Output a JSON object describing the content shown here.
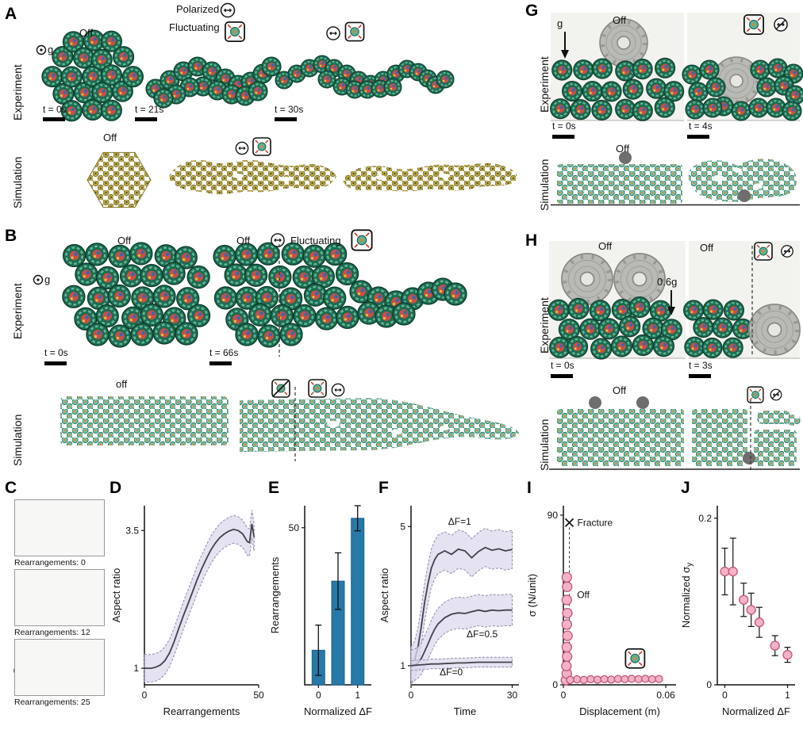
{
  "colors": {
    "bar": "#2779a7",
    "bar_edge": "#1d618c",
    "point_fill": "#f3b3c4",
    "point_edge": "#c2557e",
    "band_fill": "#dcd8ec",
    "band_edge": "#8f8bb0",
    "line": "#44414e",
    "robot_teal": "#1d6b52",
    "particle_teal": "#7cc0a9",
    "particle_olive": "#b9a94f"
  },
  "panels": {
    "A": {
      "letter": "A",
      "row_labels": [
        "Experiment",
        "Simulation"
      ],
      "legend": {
        "polarized": "Polarized",
        "fluctuating": "Fluctuating"
      },
      "off_label": "Off",
      "gravity": "g",
      "times": [
        "t = 0s",
        "t = 21s",
        "t = 30s"
      ],
      "sim_off": "Off"
    },
    "B": {
      "letter": "B",
      "row_labels": [
        "Experiment",
        "Simulation"
      ],
      "off_label": "Off",
      "off2": "Off",
      "fluctuating": "Fluctuating",
      "gravity": "g",
      "times": [
        "t = 0s",
        "t = 66s"
      ],
      "sim_off": "off"
    },
    "C": {
      "letter": "C",
      "captions": [
        "Rearrangements: 0",
        "Rearrangements: 12",
        "Rearrangements: 25"
      ]
    },
    "D": {
      "letter": "D"
    },
    "E": {
      "letter": "E"
    },
    "F": {
      "letter": "F"
    },
    "G": {
      "letter": "G",
      "row_labels": [
        "Experiment",
        "Simulation"
      ],
      "off_label": "Off",
      "gravity": "g",
      "times": [
        "t = 0s",
        "t = 4s"
      ],
      "sim_off": "Off"
    },
    "H": {
      "letter": "H",
      "row_labels": [
        "Experiment",
        "Simulation"
      ],
      "off_label": "Off",
      "off2": "Off",
      "gravity": "0.6g",
      "times": [
        "t = 0s",
        "t = 3s"
      ],
      "sim_off": "Off"
    },
    "I": {
      "letter": "I"
    },
    "J": {
      "letter": "J"
    }
  },
  "chart_data": [
    {
      "panel": "D",
      "type": "line",
      "xlabel": "Rearrangements",
      "ylabel": "Aspect ratio",
      "xlim": [
        0,
        50
      ],
      "ylim": [
        0.7,
        3.95
      ],
      "xticks": [
        0,
        50
      ],
      "yticks": [
        1,
        3.5
      ],
      "series": [
        {
          "name": "aspect_ratio",
          "band": 0.25,
          "x": [
            0,
            3,
            5,
            7,
            9,
            11,
            13,
            15,
            17,
            19,
            21,
            23,
            25,
            27,
            29,
            31,
            33,
            35,
            37,
            39,
            41,
            43,
            45,
            46,
            47,
            48
          ],
          "y": [
            1.0,
            1.0,
            1.02,
            1.06,
            1.14,
            1.28,
            1.48,
            1.72,
            1.95,
            2.16,
            2.38,
            2.6,
            2.8,
            2.98,
            3.14,
            3.27,
            3.37,
            3.44,
            3.49,
            3.52,
            3.5,
            3.44,
            3.3,
            3.28,
            3.62,
            3.38
          ]
        }
      ]
    },
    {
      "panel": "E",
      "type": "bar",
      "xlabel": "Normalized ΔF",
      "ylabel": "Rearrangements",
      "xlim": [
        -0.35,
        1.35
      ],
      "ylim": [
        0,
        57
      ],
      "xticks": [
        0,
        1
      ],
      "yticks": [
        50
      ],
      "categories": [
        0,
        0.5,
        1
      ],
      "values": [
        11,
        33,
        53
      ],
      "errors": [
        8,
        9,
        4
      ],
      "color": "#2779a7"
    },
    {
      "panel": "F",
      "type": "line",
      "xlabel": "Time",
      "ylabel": "Aspect ratio",
      "xlim": [
        0,
        32
      ],
      "ylim": [
        0.45,
        5.6
      ],
      "xticks": [
        0,
        30
      ],
      "yticks": [
        1,
        5
      ],
      "series": [
        {
          "name": "ΔF=1",
          "band": 0.55,
          "label": [
            11,
            5.05
          ],
          "x": [
            0,
            1,
            2,
            3,
            4,
            5,
            6,
            7,
            8,
            10,
            12,
            14,
            16,
            18,
            20,
            22,
            24,
            26,
            28,
            30
          ],
          "y": [
            1,
            1.15,
            1.5,
            2.1,
            2.8,
            3.35,
            3.8,
            4.05,
            4.2,
            4.3,
            4.2,
            4.35,
            4.3,
            4.1,
            4.28,
            4.4,
            4.32,
            4.36,
            4.3,
            4.34
          ]
        },
        {
          "name": "ΔF=0.5",
          "band": 0.45,
          "label": [
            16.5,
            1.82
          ],
          "x": [
            0,
            1,
            2,
            3,
            4,
            5,
            6,
            7,
            8,
            10,
            12,
            14,
            16,
            18,
            20,
            22,
            24,
            26,
            28,
            30
          ],
          "y": [
            1,
            1.02,
            1.08,
            1.2,
            1.4,
            1.62,
            1.85,
            2.05,
            2.2,
            2.38,
            2.48,
            2.52,
            2.5,
            2.55,
            2.6,
            2.56,
            2.6,
            2.58,
            2.6,
            2.6
          ]
        },
        {
          "name": "ΔF=0",
          "band": 0.14,
          "label": [
            8.5,
            0.72
          ],
          "x": [
            0,
            2,
            4,
            6,
            8,
            10,
            12,
            14,
            16,
            18,
            20,
            22,
            24,
            26,
            28,
            30
          ],
          "y": [
            1,
            1.02,
            1.03,
            1.05,
            1.05,
            1.06,
            1.07,
            1.08,
            1.08,
            1.09,
            1.1,
            1.1,
            1.1,
            1.1,
            1.1,
            1.1
          ]
        }
      ]
    },
    {
      "panel": "I",
      "type": "scatter",
      "xlabel": "Displacement (m)",
      "ylabel": "σ (N/unit)",
      "xlim": [
        0,
        0.066
      ],
      "ylim": [
        0,
        95
      ],
      "xticks": [
        0,
        0.06
      ],
      "yticks": [
        0,
        90
      ],
      "series": [
        {
          "name": "off",
          "r": 6,
          "points": [
            [
              0.0015,
              2.5
            ],
            [
              0.002,
              6
            ],
            [
              0.0018,
              10
            ],
            [
              0.0022,
              15
            ],
            [
              0.002,
              20
            ],
            [
              0.0024,
              26
            ],
            [
              0.002,
              32
            ],
            [
              0.0023,
              38
            ],
            [
              0.002,
              45
            ],
            [
              0.0022,
              52
            ],
            [
              0.002,
              57
            ]
          ]
        },
        {
          "name": "fluctuating",
          "r": 4.5,
          "points": [
            [
              0.004,
              2.6
            ],
            [
              0.008,
              2.9
            ],
            [
              0.012,
              2.6
            ],
            [
              0.016,
              3.0
            ],
            [
              0.02,
              2.7
            ],
            [
              0.024,
              3.0
            ],
            [
              0.028,
              2.8
            ],
            [
              0.032,
              3.1
            ],
            [
              0.036,
              3.0
            ],
            [
              0.04,
              3.2
            ],
            [
              0.044,
              3.0
            ],
            [
              0.048,
              3.2
            ],
            [
              0.052,
              3.0
            ],
            [
              0.056,
              3.1
            ]
          ]
        }
      ],
      "fracture": {
        "x": 0.0035,
        "y": 86,
        "label": "Fracture"
      },
      "annotations": [
        {
          "x": 0.008,
          "y": 46,
          "text": "Off"
        }
      ],
      "icon": {
        "name": "ic-fluct",
        "x": 0.042,
        "y": 14,
        "size": 24
      }
    },
    {
      "panel": "J",
      "type": "scatter",
      "xlabel": "Normalized ΔF",
      "ylabel_main": "Normalized σ",
      "ylabel_sub": "y",
      "xlim": [
        -0.12,
        1.12
      ],
      "ylim": [
        0,
        0.215
      ],
      "xticks": [
        0,
        1
      ],
      "yticks": [
        0,
        0.2
      ],
      "points": [
        [
          0,
          0.136,
          0.028
        ],
        [
          0.13,
          0.136,
          0.04
        ],
        [
          0.3,
          0.102,
          0.02
        ],
        [
          0.42,
          0.09,
          0.02
        ],
        [
          0.55,
          0.075,
          0.018
        ],
        [
          0.8,
          0.047,
          0.012
        ],
        [
          1.0,
          0.036,
          0.009
        ]
      ]
    }
  ]
}
